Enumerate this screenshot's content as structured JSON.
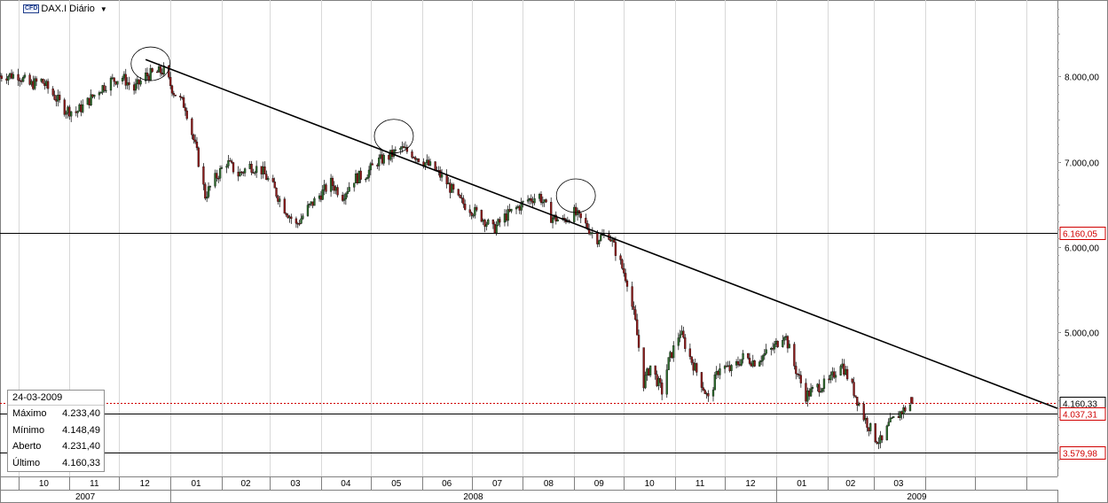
{
  "header": {
    "badge": "CFD",
    "title": "DAX.I Diário"
  },
  "info_box": {
    "date": "24-03-2009",
    "rows": [
      {
        "label": "Máximo",
        "value": "4.233,40"
      },
      {
        "label": "Mínimo",
        "value": "4.148,49"
      },
      {
        "label": "Aberto",
        "value": "4.231,40"
      },
      {
        "label": "Último",
        "value": "4.160,33"
      }
    ]
  },
  "chart_data": {
    "type": "line",
    "title": "DAX.I Diário",
    "y_ticks": [
      "8.000,00",
      "7.000,00",
      "6.000,00",
      "5.000,00"
    ],
    "y_tick_values": [
      8000,
      7000,
      6000,
      5000
    ],
    "ylim": [
      3300,
      8900
    ],
    "x_month_labels": [
      "10",
      "11",
      "12",
      "01",
      "02",
      "03",
      "04",
      "05",
      "06",
      "07",
      "08",
      "09",
      "10",
      "11",
      "12",
      "01",
      "02",
      "03"
    ],
    "x_month_starts": [
      "2007-10-01",
      "2007-11-01",
      "2007-12-01",
      "2008-01-01",
      "2008-02-01",
      "2008-03-01",
      "2008-04-01",
      "2008-05-01",
      "2008-06-01",
      "2008-07-01",
      "2008-08-01",
      "2008-09-01",
      "2008-10-01",
      "2008-11-01",
      "2008-12-01",
      "2009-01-01",
      "2009-02-01",
      "2009-03-01"
    ],
    "x_years": [
      {
        "label": "2007",
        "from": "2007-09-20",
        "to": "2008-01-01"
      },
      {
        "label": "2008",
        "from": "2008-01-01",
        "to": "2009-01-01"
      },
      {
        "label": "2009",
        "from": "2009-01-01",
        "to": "2009-06-20"
      }
    ],
    "xlim": [
      "2007-09-20",
      "2009-06-20"
    ],
    "series": [
      {
        "values": [
          [
            "2007-09-20",
            8010
          ],
          [
            "2007-10-01",
            8020
          ],
          [
            "2007-10-08",
            7900
          ],
          [
            "2007-10-15",
            7950
          ],
          [
            "2007-10-22",
            7790
          ],
          [
            "2007-10-29",
            7620
          ],
          [
            "2007-11-05",
            7580
          ],
          [
            "2007-11-12",
            7700
          ],
          [
            "2007-11-19",
            7850
          ],
          [
            "2007-11-26",
            7950
          ],
          [
            "2007-12-03",
            7990
          ],
          [
            "2007-12-10",
            7850
          ],
          [
            "2007-12-17",
            8010
          ],
          [
            "2007-12-28",
            8070
          ],
          [
            "2008-01-03",
            7820
          ],
          [
            "2008-01-10",
            7650
          ],
          [
            "2008-01-17",
            7100
          ],
          [
            "2008-01-22",
            6600
          ],
          [
            "2008-01-28",
            6800
          ],
          [
            "2008-02-04",
            7000
          ],
          [
            "2008-02-11",
            6850
          ],
          [
            "2008-02-18",
            6950
          ],
          [
            "2008-02-25",
            6900
          ],
          [
            "2008-03-03",
            6700
          ],
          [
            "2008-03-10",
            6450
          ],
          [
            "2008-03-17",
            6250
          ],
          [
            "2008-03-24",
            6450
          ],
          [
            "2008-03-31",
            6600
          ],
          [
            "2008-04-07",
            6750
          ],
          [
            "2008-04-14",
            6600
          ],
          [
            "2008-04-21",
            6800
          ],
          [
            "2008-04-28",
            6850
          ],
          [
            "2008-05-05",
            7000
          ],
          [
            "2008-05-12",
            7060
          ],
          [
            "2008-05-19",
            7150
          ],
          [
            "2008-05-26",
            7100
          ],
          [
            "2008-06-02",
            7000
          ],
          [
            "2008-06-09",
            6900
          ],
          [
            "2008-06-16",
            6750
          ],
          [
            "2008-06-23",
            6550
          ],
          [
            "2008-06-30",
            6450
          ],
          [
            "2008-07-07",
            6350
          ],
          [
            "2008-07-14",
            6200
          ],
          [
            "2008-07-21",
            6350
          ],
          [
            "2008-07-28",
            6450
          ],
          [
            "2008-08-04",
            6550
          ],
          [
            "2008-08-11",
            6600
          ],
          [
            "2008-08-18",
            6350
          ],
          [
            "2008-08-25",
            6300
          ],
          [
            "2008-09-01",
            6400
          ],
          [
            "2008-09-08",
            6250
          ],
          [
            "2008-09-15",
            6100
          ],
          [
            "2008-09-22",
            6150
          ],
          [
            "2008-09-29",
            5800
          ],
          [
            "2008-10-03",
            5600
          ],
          [
            "2008-10-08",
            5100
          ],
          [
            "2008-10-13",
            4400
          ],
          [
            "2008-10-17",
            4600
          ],
          [
            "2008-10-24",
            4300
          ],
          [
            "2008-10-28",
            4650
          ],
          [
            "2008-11-04",
            5000
          ],
          [
            "2008-11-10",
            4700
          ],
          [
            "2008-11-17",
            4400
          ],
          [
            "2008-11-21",
            4200
          ],
          [
            "2008-11-28",
            4600
          ],
          [
            "2008-12-05",
            4550
          ],
          [
            "2008-12-12",
            4700
          ],
          [
            "2008-12-19",
            4650
          ],
          [
            "2008-12-30",
            4800
          ],
          [
            "2009-01-06",
            4990
          ],
          [
            "2009-01-12",
            4600
          ],
          [
            "2009-01-19",
            4250
          ],
          [
            "2009-01-26",
            4350
          ],
          [
            "2009-02-02",
            4400
          ],
          [
            "2009-02-09",
            4650
          ],
          [
            "2009-02-16",
            4350
          ],
          [
            "2009-02-23",
            4000
          ],
          [
            "2009-03-02",
            3750
          ],
          [
            "2009-03-06",
            3700
          ],
          [
            "2009-03-10",
            3900
          ],
          [
            "2009-03-17",
            4050
          ],
          [
            "2009-03-24",
            4160
          ]
        ]
      }
    ],
    "price_labels": [
      {
        "value": 6160.05,
        "text": "6.160,05",
        "style": "solid"
      },
      {
        "value": 4160.33,
        "text": "4.160,33",
        "style": "dotted-red"
      },
      {
        "value": 4037.31,
        "text": "4.037,31",
        "style": "solid"
      },
      {
        "value": 3579.98,
        "text": "3.579,98",
        "style": "solid"
      }
    ],
    "trendline": {
      "from": [
        "2007-12-17",
        8200
      ],
      "to": [
        "2009-06-20",
        4100
      ]
    },
    "circled_peaks": [
      [
        "2007-12-20",
        8150
      ],
      [
        "2008-05-15",
        7300
      ],
      [
        "2008-09-02",
        6600
      ]
    ],
    "grid": true,
    "colors": {
      "up": "#2e6b2e",
      "down": "#8b1a1a",
      "last_price": "#d00000",
      "line": "#000000"
    }
  }
}
